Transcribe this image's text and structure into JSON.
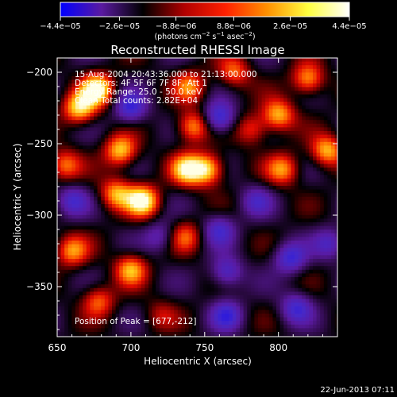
{
  "chart_data": {
    "type": "heatmap",
    "title": "Reconstructed RHESSI Image",
    "xlabel": "Heliocentric X (arcsec)",
    "ylabel": "Heliocentric Y (arcsec)",
    "xlim": [
      650,
      840
    ],
    "ylim": [
      -385,
      -190
    ],
    "x_ticks": [
      650,
      700,
      750,
      800
    ],
    "x_tick_labels": [
      "650",
      "700",
      "750",
      "800"
    ],
    "y_ticks": [
      -200,
      -250,
      -300,
      -350
    ],
    "y_tick_labels": [
      "−200",
      "−250",
      "−300",
      "−350"
    ],
    "colorbar": {
      "range": [
        -4.4e-05,
        4.4e-05
      ],
      "tick_labels": [
        "−4.4e−05",
        "−2.6e−05",
        "−8.8e−06",
        "8.8e−06",
        "2.6e−05",
        "4.4e−05"
      ],
      "unit_label_parts": [
        "(photons cm",
        "−2",
        " s",
        "−1",
        " asec",
        "−2",
        ")"
      ],
      "colors": [
        "#0000ff",
        "#5a1aa0",
        "#000000",
        "#b00000",
        "#ff2000",
        "#ff9000",
        "#ffff40",
        "#ffffff"
      ]
    },
    "annotations": [
      "15-Aug-2004 20:43:36.000 to 21:13:00.000",
      "Detectors: 4F 5F 6F 7F 8F, Att 1",
      "Energy Range: 25.0 - 50.0 keV",
      "Clean   Total counts: 2.82E+04"
    ],
    "peak_label": "Position of Peak = [677,-212]",
    "peak_position": [
      677,
      -212
    ],
    "grid": false,
    "blobs": [
      {
        "x": 677,
        "y": -212,
        "v": 1.0
      },
      {
        "x": 665,
        "y": -225,
        "v": 0.85
      },
      {
        "x": 693,
        "y": -255,
        "v": 0.8
      },
      {
        "x": 655,
        "y": -265,
        "v": 0.6
      },
      {
        "x": 708,
        "y": -290,
        "v": 1.0
      },
      {
        "x": 690,
        "y": -285,
        "v": 0.7
      },
      {
        "x": 738,
        "y": -268,
        "v": 0.85
      },
      {
        "x": 752,
        "y": -268,
        "v": 0.85
      },
      {
        "x": 742,
        "y": -238,
        "v": 0.7
      },
      {
        "x": 740,
        "y": -210,
        "v": 0.6
      },
      {
        "x": 770,
        "y": -200,
        "v": 0.55
      },
      {
        "x": 800,
        "y": -230,
        "v": 0.75
      },
      {
        "x": 820,
        "y": -205,
        "v": 0.7
      },
      {
        "x": 803,
        "y": -268,
        "v": 0.65
      },
      {
        "x": 833,
        "y": -255,
        "v": 0.75
      },
      {
        "x": 782,
        "y": -240,
        "v": 0.5
      },
      {
        "x": 660,
        "y": -325,
        "v": 0.65
      },
      {
        "x": 700,
        "y": -338,
        "v": 0.7
      },
      {
        "x": 678,
        "y": -360,
        "v": 0.55
      },
      {
        "x": 737,
        "y": -315,
        "v": 0.5
      },
      {
        "x": 720,
        "y": -370,
        "v": 0.3
      },
      {
        "x": 765,
        "y": -340,
        "v": -0.55
      },
      {
        "x": 765,
        "y": -370,
        "v": -0.55
      },
      {
        "x": 808,
        "y": -330,
        "v": -0.6
      },
      {
        "x": 812,
        "y": -365,
        "v": -0.55
      },
      {
        "x": 760,
        "y": -232,
        "v": -0.7
      },
      {
        "x": 760,
        "y": -310,
        "v": -0.5
      },
      {
        "x": 700,
        "y": -225,
        "v": -0.6
      },
      {
        "x": 660,
        "y": -290,
        "v": -0.5
      },
      {
        "x": 785,
        "y": -290,
        "v": -0.4
      },
      {
        "x": 835,
        "y": -320,
        "v": -0.45
      },
      {
        "x": 720,
        "y": -315,
        "v": -0.4
      }
    ]
  },
  "footer": {
    "timestamp": "22-Jun-2013 07:11"
  }
}
